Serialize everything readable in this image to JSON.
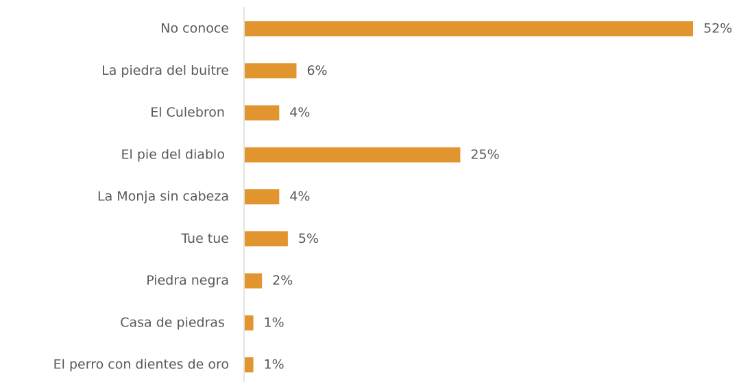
{
  "chart_data": {
    "type": "bar",
    "orientation": "horizontal",
    "categories": [
      "No conoce",
      "La piedra del buitre",
      "El Culebron ",
      "El pie del diablo ",
      "La Monja sin cabeza",
      "Tue tue",
      "Piedra negra",
      "Casa de piedras ",
      "El perro con dientes de oro"
    ],
    "values": [
      52,
      6,
      4,
      25,
      4,
      5,
      2,
      1,
      1
    ],
    "value_labels": [
      "52%",
      "6%",
      "4%",
      "25%",
      "4%",
      "5%",
      "2%",
      "1%",
      "1%"
    ],
    "color": "#e2942f"
  }
}
